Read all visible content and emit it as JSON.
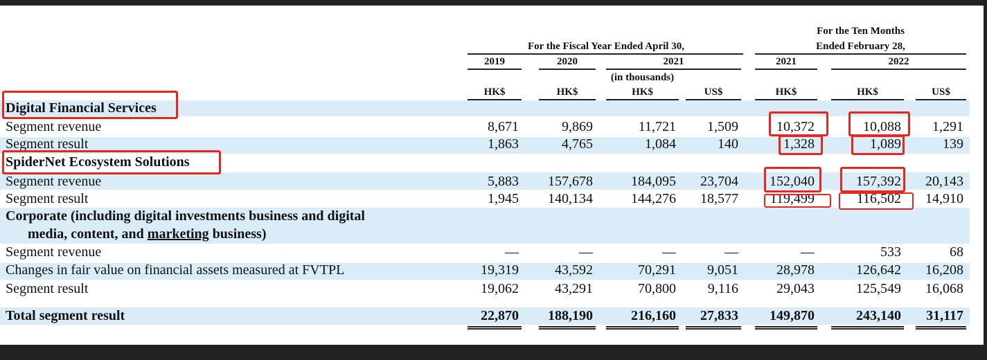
{
  "header": {
    "fiscal_year_title": "For the Fiscal Year Ended April 30,",
    "ten_months_line1": "For the Ten Months",
    "ten_months_line2": "Ended February 28,",
    "years": [
      "2019",
      "2020",
      "2021",
      "2021",
      "2022"
    ],
    "in_thousands": "(in thousands)",
    "currencies": [
      "HK$",
      "HK$",
      "HK$",
      "US$",
      "HK$",
      "HK$",
      "US$"
    ]
  },
  "sections": {
    "digital_financial": {
      "title": "Digital Financial Services",
      "revenue": {
        "label": "Segment revenue",
        "values": [
          "8,671",
          "9,869",
          "11,721",
          "1,509",
          "10,372",
          "10,088",
          "1,291"
        ]
      },
      "result": {
        "label": "Segment result",
        "values": [
          "1,863",
          "4,765",
          "1,084",
          "140",
          "1,328",
          "1,089",
          "139"
        ]
      }
    },
    "spidernet": {
      "title": "SpiderNet Ecosystem Solutions",
      "revenue": {
        "label": "Segment revenue",
        "values": [
          "5,883",
          "157,678",
          "184,095",
          "23,704",
          "152,040",
          "157,392",
          "20,143"
        ]
      },
      "result": {
        "label": "Segment result",
        "values": [
          "1,945",
          "140,134",
          "144,276",
          "18,577",
          "119,499",
          "116,502",
          "14,910"
        ]
      }
    },
    "corporate": {
      "title_line1": "Corporate (including digital investments business and digital",
      "title_line2a": "media, content, and ",
      "title_line2b": "marketing",
      "title_line2c": " business)",
      "revenue": {
        "label": "Segment revenue",
        "values": [
          "—",
          "—",
          "—",
          "—",
          "—",
          "533",
          "68"
        ]
      },
      "fvtpl": {
        "label": "Changes in fair value on financial assets measured at FVTPL",
        "values": [
          "19,319",
          "43,592",
          "70,291",
          "9,051",
          "28,978",
          "126,642",
          "16,208"
        ]
      },
      "result": {
        "label": "Segment result",
        "values": [
          "19,062",
          "43,291",
          "70,800",
          "9,116",
          "29,043",
          "125,549",
          "16,068"
        ]
      }
    }
  },
  "total": {
    "label": "Total segment result",
    "values": [
      "22,870",
      "188,190",
      "216,160",
      "27,833",
      "149,870",
      "243,140",
      "31,117"
    ]
  },
  "colors": {
    "row_band": "#d9ecf8",
    "highlight": "#e8261f",
    "frame": "#222222"
  }
}
